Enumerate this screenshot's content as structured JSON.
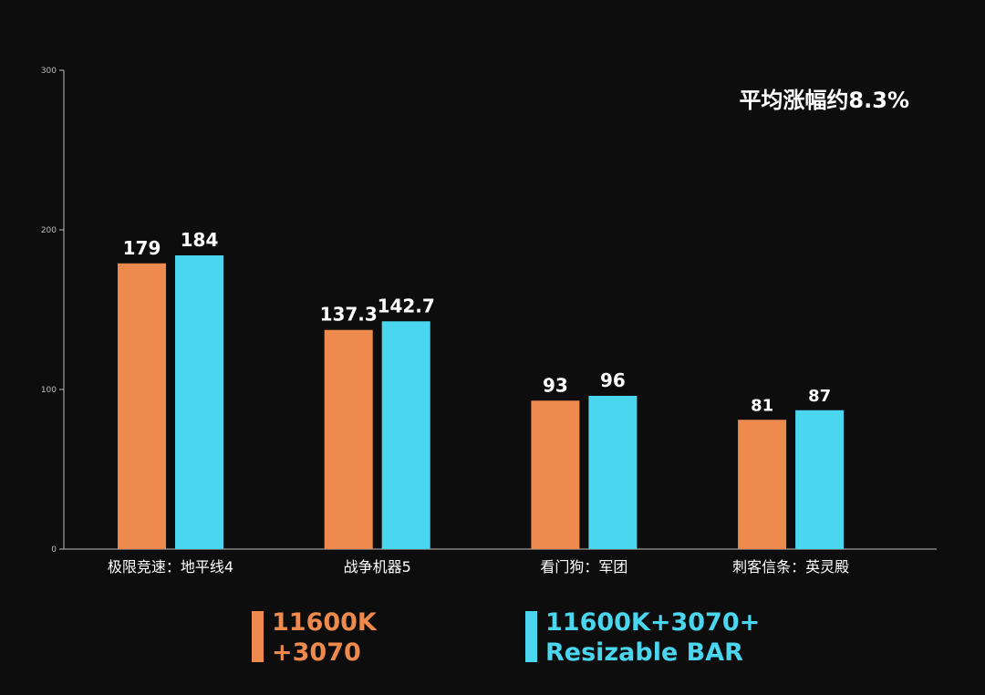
{
  "colors": {
    "background": "#0d0d0d",
    "axis": "#bdbdbd",
    "text": "#ffffff"
  },
  "annotation": "平均涨幅约8.3%",
  "chart_data": {
    "type": "bar",
    "categories": [
      "极限竞速：地平线4",
      "战争机器5",
      "看门狗：军团",
      "刺客信条：英灵殿"
    ],
    "series": [
      {
        "name": "11600K\n+3070",
        "color": "#ee8a4d",
        "values": [
          179,
          137.3,
          93,
          81
        ],
        "labels": [
          "179",
          "137.3",
          "93",
          "81"
        ]
      },
      {
        "name": "11600K+3070+\nResizable BAR",
        "color": "#4ad6ee",
        "values": [
          184,
          142.7,
          96,
          87
        ],
        "labels": [
          "184",
          "142.7",
          "96",
          "87"
        ]
      }
    ],
    "yticks": [
      "0",
      "100",
      "200",
      "300"
    ],
    "ylim": [
      0,
      300
    ],
    "grid": false,
    "legend": "bottom"
  }
}
